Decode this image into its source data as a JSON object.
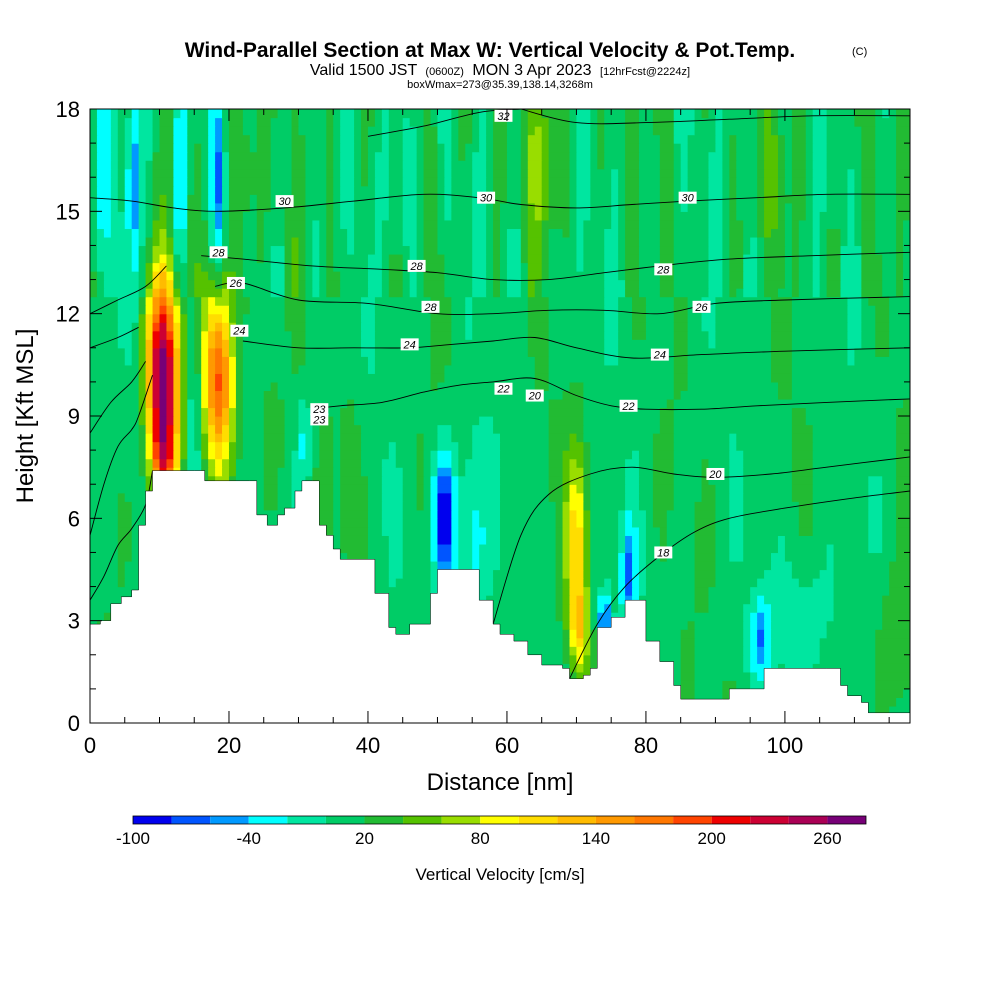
{
  "chart_data": {
    "type": "heatmap",
    "title": "Wind-Parallel Section at Max W: Vertical Velocity & Pot.Temp.",
    "title_mark": "(C)",
    "subtitle_parts": {
      "valid": "Valid 1500 JST",
      "utc": "(0600Z)",
      "date": "MON 3 Apr 2023",
      "fcst": "[12hrFcst@2224z]"
    },
    "box_info": "boxWmax=273@35.39,138.14,3268m",
    "xlabel": "Distance [nm]",
    "ylabel": "Height [Kft MSL]",
    "xlim": [
      0,
      118
    ],
    "ylim": [
      0,
      18
    ],
    "x_ticks": [
      {
        "value": 0,
        "label": "0"
      },
      {
        "value": 20,
        "label": "20"
      },
      {
        "value": 40,
        "label": "40"
      },
      {
        "value": 60,
        "label": "60"
      },
      {
        "value": 80,
        "label": "80"
      },
      {
        "value": 100,
        "label": "100"
      }
    ],
    "y_ticks": [
      {
        "value": 0,
        "label": "0"
      },
      {
        "value": 3,
        "label": "3"
      },
      {
        "value": 6,
        "label": "6"
      },
      {
        "value": 9,
        "label": "9"
      },
      {
        "value": 12,
        "label": "12"
      },
      {
        "value": 15,
        "label": "15"
      },
      {
        "value": 18,
        "label": "18"
      }
    ],
    "colorbar": {
      "title": "Vertical Velocity [cm/s]",
      "levels": [
        -100,
        -80,
        -60,
        -40,
        -20,
        0,
        20,
        40,
        60,
        80,
        100,
        120,
        140,
        160,
        180,
        200,
        220,
        240,
        260,
        280
      ],
      "colors": [
        "#0000ee",
        "#0055ff",
        "#0099ff",
        "#00ffff",
        "#00e6a0",
        "#00cc66",
        "#22bb33",
        "#55c200",
        "#99dd00",
        "#ffff00",
        "#ffdd00",
        "#ffbb00",
        "#ff9900",
        "#ff7700",
        "#ff4400",
        "#ee0000",
        "#cc0033",
        "#aa0055",
        "#770077"
      ],
      "tick_labels": [
        {
          "value": -100,
          "label": "-100"
        },
        {
          "value": -40,
          "label": "-40"
        },
        {
          "value": 20,
          "label": "20"
        },
        {
          "value": 80,
          "label": "80"
        },
        {
          "value": 140,
          "label": "140"
        },
        {
          "value": 200,
          "label": "200"
        },
        {
          "value": 260,
          "label": "260"
        }
      ]
    },
    "terrain": [
      [
        0,
        2.9
      ],
      [
        1.5,
        3.0
      ],
      [
        3,
        3.5
      ],
      [
        4.5,
        3.7
      ],
      [
        6,
        3.9
      ],
      [
        7,
        5.8
      ],
      [
        8,
        6.8
      ],
      [
        9,
        7.4
      ],
      [
        15,
        7.4
      ],
      [
        16.5,
        7.1
      ],
      [
        23,
        7.1
      ],
      [
        24,
        6.1
      ],
      [
        25.5,
        5.8
      ],
      [
        27,
        6.1
      ],
      [
        28,
        6.3
      ],
      [
        29.5,
        6.8
      ],
      [
        30.5,
        7.1
      ],
      [
        32,
        7.1
      ],
      [
        33,
        5.8
      ],
      [
        34,
        5.5
      ],
      [
        35,
        5.1
      ],
      [
        36,
        4.8
      ],
      [
        39,
        4.8
      ],
      [
        41,
        3.8
      ],
      [
        43,
        2.8
      ],
      [
        44,
        2.6
      ],
      [
        46,
        2.9
      ],
      [
        49,
        3.8
      ],
      [
        50,
        4.5
      ],
      [
        53,
        4.5
      ],
      [
        56,
        3.6
      ],
      [
        58,
        2.9
      ],
      [
        59,
        2.6
      ],
      [
        61,
        2.4
      ],
      [
        63,
        2.0
      ],
      [
        65,
        1.7
      ],
      [
        68,
        1.6
      ],
      [
        69,
        1.3
      ],
      [
        71,
        1.4
      ],
      [
        72,
        1.6
      ],
      [
        73,
        2.8
      ],
      [
        75,
        3.1
      ],
      [
        77,
        3.6
      ],
      [
        80,
        2.4
      ],
      [
        82,
        1.8
      ],
      [
        84,
        1.1
      ],
      [
        85,
        0.7
      ],
      [
        91,
        0.7
      ],
      [
        92,
        1.0
      ],
      [
        95,
        1.0
      ],
      [
        97,
        1.6
      ],
      [
        106,
        1.6
      ],
      [
        108,
        1.1
      ],
      [
        109,
        0.8
      ],
      [
        111,
        0.6
      ],
      [
        112,
        0.3
      ],
      [
        118,
        0.3
      ]
    ],
    "w_features": [
      {
        "x": 10.5,
        "y": 10.2,
        "sx": 1.6,
        "sy": 2.0,
        "amp": 270
      },
      {
        "x": 18.5,
        "y": 10.2,
        "sx": 1.6,
        "sy": 1.9,
        "amp": 170
      },
      {
        "x": 10.5,
        "y": 7.5,
        "sx": 1.2,
        "sy": 1.0,
        "amp": 110
      },
      {
        "x": 70.0,
        "y": 5.2,
        "sx": 1.1,
        "sy": 2.0,
        "amp": 100
      },
      {
        "x": 70.5,
        "y": 2.8,
        "sx": 0.9,
        "sy": 0.8,
        "amp": 70
      },
      {
        "x": 65.0,
        "y": 16.5,
        "sx": 1.4,
        "sy": 1.6,
        "amp": 60
      },
      {
        "x": 37.5,
        "y": 7.0,
        "sx": 1.0,
        "sy": 1.6,
        "amp": 30
      },
      {
        "x": 26.0,
        "y": 8.6,
        "sx": 1.4,
        "sy": 1.5,
        "amp": 25
      },
      {
        "x": 51.0,
        "y": 6.0,
        "sx": 1.2,
        "sy": 1.4,
        "amp": -110
      },
      {
        "x": 55.0,
        "y": 5.0,
        "sx": 1.5,
        "sy": 2.2,
        "amp": -45
      },
      {
        "x": 74.0,
        "y": 2.9,
        "sx": 0.7,
        "sy": 0.7,
        "amp": -90
      },
      {
        "x": 77.5,
        "y": 4.2,
        "sx": 0.8,
        "sy": 1.2,
        "amp": -70
      },
      {
        "x": 96.5,
        "y": 2.5,
        "sx": 1.0,
        "sy": 0.8,
        "amp": -60
      },
      {
        "x": 15.0,
        "y": 9.5,
        "sx": 0.8,
        "sy": 2.2,
        "amp": -45
      },
      {
        "x": 1.6,
        "y": 15.5,
        "sx": 0.8,
        "sy": 2.0,
        "amp": -50
      },
      {
        "x": 6.2,
        "y": 16.0,
        "sx": 0.7,
        "sy": 2.2,
        "amp": -70
      },
      {
        "x": 13.0,
        "y": 16.2,
        "sx": 0.7,
        "sy": 2.0,
        "amp": -60
      },
      {
        "x": 18.5,
        "y": 16.0,
        "sx": 0.7,
        "sy": 2.0,
        "amp": -70
      },
      {
        "x": 45.0,
        "y": 16.0,
        "sx": 1.4,
        "sy": 2.0,
        "amp": -30
      },
      {
        "x": 31.0,
        "y": 8.3,
        "sx": 0.8,
        "sy": 1.0,
        "amp": -40
      },
      {
        "x": 103.0,
        "y": 3.0,
        "sx": 3.5,
        "sy": 1.5,
        "amp": -30
      },
      {
        "x": 22.0,
        "y": 16.5,
        "sx": 1.2,
        "sy": 1.8,
        "amp": 40
      },
      {
        "x": 99.0,
        "y": 16.5,
        "sx": 1.3,
        "sy": 1.8,
        "amp": 30
      },
      {
        "x": 116.0,
        "y": 2.2,
        "sx": 2.0,
        "sy": 1.5,
        "amp": 35
      }
    ],
    "theta_contours": [
      {
        "value": 18,
        "points": [
          [
            69,
            1.3
          ],
          [
            73,
            2.9
          ],
          [
            77,
            4.0
          ],
          [
            82,
            4.9
          ],
          [
            87,
            5.6
          ],
          [
            92,
            6.0
          ],
          [
            100,
            6.3
          ],
          [
            110,
            6.6
          ],
          [
            118,
            6.8
          ]
        ]
      },
      {
        "value": 20,
        "points": [
          [
            0,
            3.6
          ],
          [
            2,
            4.3
          ],
          [
            4,
            5.2
          ],
          [
            6,
            5.7
          ],
          [
            8,
            6.4
          ],
          [
            9,
            7.4
          ]
        ]
      },
      {
        "value": 20,
        "points": [
          [
            58,
            2.9
          ],
          [
            62,
            5.5
          ],
          [
            66,
            6.7
          ],
          [
            72,
            7.3
          ],
          [
            78,
            7.5
          ],
          [
            84,
            7.3
          ],
          [
            90,
            7.2
          ],
          [
            98,
            7.3
          ],
          [
            106,
            7.5
          ],
          [
            118,
            7.8
          ]
        ]
      },
      {
        "value": 22,
        "points": [
          [
            0,
            5.5
          ],
          [
            2,
            7.0
          ],
          [
            4,
            8.1
          ],
          [
            6,
            8.6
          ],
          [
            7,
            9.0
          ],
          [
            9,
            10.2
          ]
        ]
      },
      {
        "value": 22,
        "points": [
          [
            32,
            9.2
          ],
          [
            36,
            9.3
          ],
          [
            42,
            9.4
          ],
          [
            48,
            9.7
          ],
          [
            53,
            9.9
          ],
          [
            58,
            10.0
          ],
          [
            64,
            10.1
          ],
          [
            70,
            9.6
          ],
          [
            75,
            9.3
          ],
          [
            80,
            9.2
          ],
          [
            88,
            9.2
          ],
          [
            96,
            9.3
          ],
          [
            106,
            9.4
          ],
          [
            118,
            9.5
          ]
        ]
      },
      {
        "value": 24,
        "points": [
          [
            0,
            8.5
          ],
          [
            3,
            9.4
          ],
          [
            6,
            10.0
          ],
          [
            8,
            10.6
          ]
        ]
      },
      {
        "value": 24,
        "points": [
          [
            22,
            11.2
          ],
          [
            30,
            11.0
          ],
          [
            38,
            11.0
          ],
          [
            46,
            11.0
          ],
          [
            52,
            11.1
          ],
          [
            58,
            11.2
          ],
          [
            64,
            11.3
          ],
          [
            70,
            11.0
          ],
          [
            78,
            10.7
          ],
          [
            88,
            10.8
          ],
          [
            100,
            10.9
          ],
          [
            118,
            11.0
          ]
        ]
      },
      {
        "value": 26,
        "points": [
          [
            0,
            11.0
          ],
          [
            4,
            11.3
          ],
          [
            7,
            11.6
          ]
        ]
      },
      {
        "value": 26,
        "points": [
          [
            18,
            12.8
          ],
          [
            22,
            12.9
          ],
          [
            30,
            12.4
          ],
          [
            40,
            12.3
          ],
          [
            50,
            12.0
          ],
          [
            58,
            12.0
          ],
          [
            66,
            12.1
          ],
          [
            74,
            12.1
          ],
          [
            82,
            12.0
          ],
          [
            90,
            12.3
          ],
          [
            100,
            12.4
          ],
          [
            118,
            12.5
          ]
        ]
      },
      {
        "value": 28,
        "points": [
          [
            0,
            12.0
          ],
          [
            4,
            12.4
          ],
          [
            8,
            12.8
          ],
          [
            11,
            13.4
          ]
        ]
      },
      {
        "value": 28,
        "points": [
          [
            16,
            13.7
          ],
          [
            22,
            13.6
          ],
          [
            32,
            13.4
          ],
          [
            42,
            13.3
          ],
          [
            50,
            13.2
          ],
          [
            58,
            13.0
          ],
          [
            66,
            13.0
          ],
          [
            74,
            13.2
          ],
          [
            82,
            13.4
          ],
          [
            92,
            13.6
          ],
          [
            104,
            13.7
          ],
          [
            118,
            13.8
          ]
        ]
      },
      {
        "value": 30,
        "points": [
          [
            0,
            15.4
          ],
          [
            6,
            15.3
          ],
          [
            12,
            15.1
          ],
          [
            18,
            15.0
          ],
          [
            28,
            15.1
          ],
          [
            38,
            15.3
          ],
          [
            48,
            15.5
          ],
          [
            56,
            15.4
          ],
          [
            62,
            15.2
          ],
          [
            70,
            15.1
          ],
          [
            78,
            15.2
          ],
          [
            86,
            15.3
          ],
          [
            96,
            15.4
          ],
          [
            106,
            15.5
          ],
          [
            118,
            15.5
          ]
        ]
      },
      {
        "value": 32,
        "points": [
          [
            40,
            17.2
          ],
          [
            48,
            17.5
          ],
          [
            56,
            17.9
          ],
          [
            62,
            18.0
          ]
        ]
      },
      {
        "value": 32,
        "points": [
          [
            62,
            18.0
          ],
          [
            70,
            17.6
          ],
          [
            80,
            17.6
          ],
          [
            92,
            17.7
          ],
          [
            104,
            17.8
          ],
          [
            118,
            17.8
          ]
        ]
      }
    ],
    "contour_labels": [
      {
        "value": "32",
        "x": 59.5,
        "y": 17.8
      },
      {
        "value": "30",
        "x": 28,
        "y": 15.3
      },
      {
        "value": "30",
        "x": 57,
        "y": 15.4
      },
      {
        "value": "30",
        "x": 86,
        "y": 15.4
      },
      {
        "value": "28",
        "x": 18.5,
        "y": 13.8
      },
      {
        "value": "28",
        "x": 47,
        "y": 13.4
      },
      {
        "value": "28",
        "x": 82.5,
        "y": 13.3
      },
      {
        "value": "28",
        "x": 49,
        "y": 12.2
      },
      {
        "value": "26",
        "x": 21,
        "y": 12.9
      },
      {
        "value": "26",
        "x": 88,
        "y": 12.2
      },
      {
        "value": "24",
        "x": 21.5,
        "y": 11.5
      },
      {
        "value": "24",
        "x": 46,
        "y": 11.1
      },
      {
        "value": "24",
        "x": 82,
        "y": 10.8
      },
      {
        "value": "22",
        "x": 59.5,
        "y": 9.8
      },
      {
        "value": "20",
        "x": 64,
        "y": 9.6
      },
      {
        "value": "22",
        "x": 77.5,
        "y": 9.3
      },
      {
        "value": "23",
        "x": 33,
        "y": 9.2
      },
      {
        "value": "23",
        "x": 33,
        "y": 8.9
      },
      {
        "value": "20",
        "x": 90,
        "y": 7.3
      },
      {
        "value": "18",
        "x": 82.5,
        "y": 5.0
      }
    ]
  }
}
